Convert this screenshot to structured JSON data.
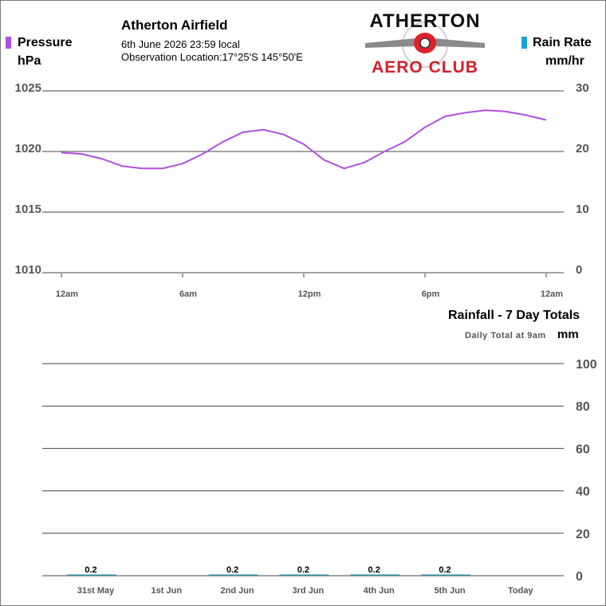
{
  "header": {
    "station_name": "Atherton Airfield",
    "date_time": "6th June 2026  23:59 local",
    "location": "Observation Location:17°25'S 145°50'E"
  },
  "logo": {
    "line1": "ATHERTON",
    "line2": "AERO CLUB"
  },
  "colors": {
    "pressure": "#b24fe0",
    "rain_rate": "#1aa3d9",
    "rain_bar": "#2f8ea6",
    "grid": "#444444",
    "axis_text": "#555555"
  },
  "chart_data": [
    {
      "type": "line",
      "legend": {
        "left_label": "Pressure",
        "left_unit": "hPa",
        "right_label": "Rain Rate",
        "right_unit": "mm/hr",
        "placement": "top"
      },
      "x_ticks": [
        "12am",
        "6am",
        "12pm",
        "6pm",
        "12am"
      ],
      "x_hours_range": [
        0,
        24
      ],
      "y_left": {
        "ticks": [
          1025,
          1020,
          1015,
          1010
        ],
        "range": [
          1010,
          1025
        ]
      },
      "y_right": {
        "ticks": [
          30,
          20,
          10,
          0
        ],
        "range": [
          0,
          30
        ]
      },
      "grid": true,
      "series": [
        {
          "name": "Pressure",
          "x_hours": [
            0,
            1,
            2,
            3,
            4,
            5,
            6,
            7,
            8,
            9,
            10,
            11,
            12,
            13,
            14,
            15,
            16,
            17,
            18,
            19,
            20,
            21,
            22,
            23,
            24
          ],
          "values": [
            1019.9,
            1019.8,
            1019.4,
            1018.8,
            1018.6,
            1018.6,
            1019.0,
            1019.8,
            1020.8,
            1021.6,
            1021.8,
            1021.4,
            1020.6,
            1019.3,
            1018.6,
            1019.1,
            1020.0,
            1020.8,
            1022.0,
            1022.9,
            1023.2,
            1023.4,
            1023.3,
            1023.0,
            1022.6
          ]
        },
        {
          "name": "Rain Rate",
          "x_hours": [
            0,
            24
          ],
          "values": [
            0,
            0
          ]
        }
      ]
    },
    {
      "type": "bar",
      "title": "Rainfall - 7 Day Totals",
      "subtitle": "Daily Total at 9am",
      "ylabel": "mm",
      "categories": [
        "31st May",
        "1st Jun",
        "2nd Jun",
        "3rd Jun",
        "4th Jun",
        "5th Jun",
        "Today"
      ],
      "values": [
        0.2,
        0,
        0.2,
        0.2,
        0.2,
        0.2,
        0
      ],
      "value_labels": [
        "0.2",
        "",
        "0.2",
        "0.2",
        "0.2",
        "0.2",
        ""
      ],
      "y_ticks": [
        100,
        80,
        60,
        40,
        20,
        0
      ],
      "ylim": [
        0,
        100
      ],
      "grid": true
    }
  ]
}
